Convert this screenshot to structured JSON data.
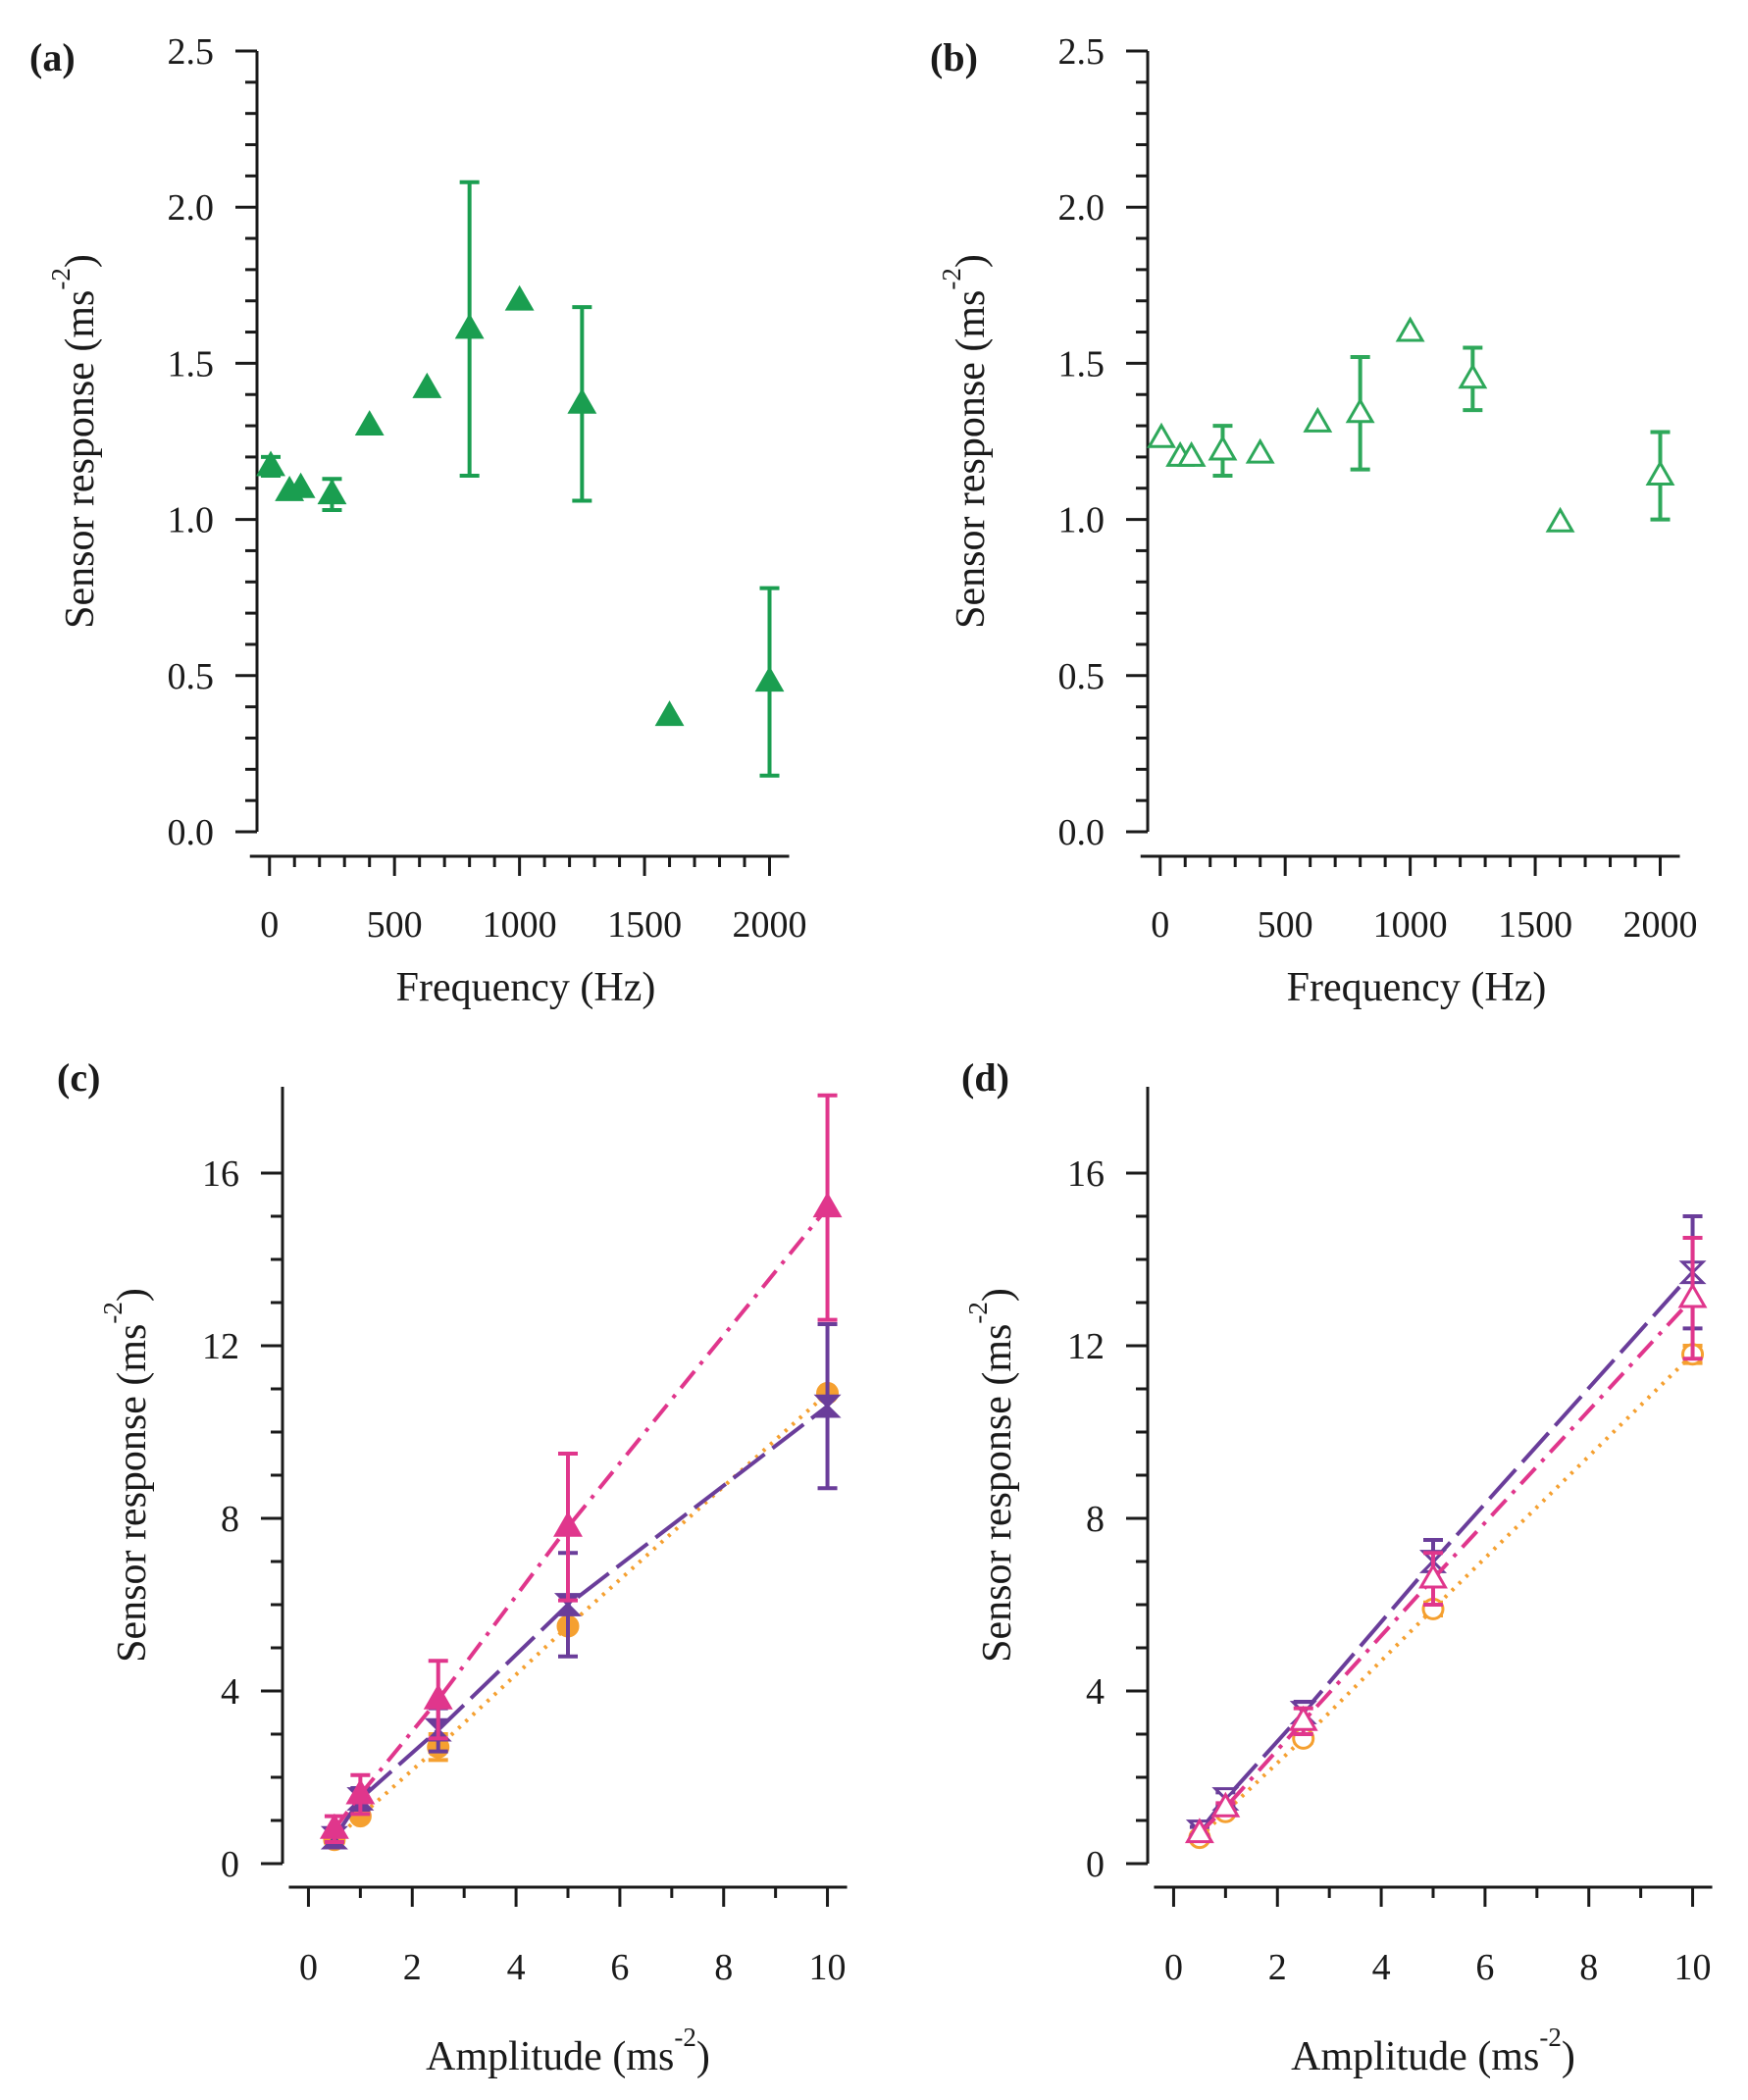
{
  "chart_data": [
    {
      "type": "scatter",
      "panel_label": "(a)",
      "xlabel": "Frequency (Hz)",
      "ylabel": "Sensor response (ms",
      "ylabel_sup": "-2",
      "ylabel_close": ")",
      "xlim": [
        -50,
        2100
      ],
      "ylim": [
        0,
        2.5
      ],
      "xticks": [
        0,
        500,
        1000,
        1500,
        2000
      ],
      "xtick_labels": [
        "0",
        "500",
        "1000",
        "1500",
        "2000"
      ],
      "yticks": [
        0,
        0.5,
        1.0,
        1.5,
        2.0,
        2.5
      ],
      "ytick_labels": [
        "0.0",
        "0.5",
        "1.0",
        "1.5",
        "2.0",
        "2.5"
      ],
      "series": [
        {
          "name": "filled triangles",
          "color": "#1a9e50",
          "marker": "triangle-filled",
          "x": [
            5,
            80,
            125,
            250,
            400,
            630,
            800,
            1000,
            1250,
            1600,
            2000
          ],
          "y": [
            1.17,
            1.09,
            1.1,
            1.08,
            1.3,
            1.42,
            1.61,
            1.7,
            1.37,
            0.37,
            0.48
          ],
          "err": [
            0.03,
            0,
            0,
            0.05,
            0,
            0,
            0.47,
            0,
            0.31,
            0,
            0.3
          ]
        }
      ]
    },
    {
      "type": "scatter",
      "panel_label": "(b)",
      "xlabel": "Frequency (Hz)",
      "ylabel": "Sensor response (ms",
      "ylabel_sup": "-2",
      "ylabel_close": ")",
      "xlim": [
        -50,
        2100
      ],
      "ylim": [
        0,
        2.5
      ],
      "xticks": [
        0,
        500,
        1000,
        1500,
        2000
      ],
      "xtick_labels": [
        "0",
        "500",
        "1000",
        "1500",
        "2000"
      ],
      "yticks": [
        0,
        0.5,
        1.0,
        1.5,
        2.0,
        2.5
      ],
      "ytick_labels": [
        "0.0",
        "0.5",
        "1.0",
        "1.5",
        "2.0",
        "2.5"
      ],
      "series": [
        {
          "name": "open triangles",
          "color": "#2ea85a",
          "marker": "triangle-open",
          "x": [
            5,
            80,
            125,
            250,
            400,
            630,
            800,
            1000,
            1250,
            1600,
            2000
          ],
          "y": [
            1.26,
            1.2,
            1.2,
            1.22,
            1.21,
            1.31,
            1.34,
            1.6,
            1.45,
            0.99,
            1.14
          ],
          "err": [
            0,
            0,
            0,
            0.08,
            0,
            0,
            0.18,
            0,
            0.1,
            0,
            0.14
          ]
        }
      ]
    },
    {
      "type": "line",
      "panel_label": "(c)",
      "xlabel": "Amplitude (ms",
      "xlabel_sup": "-2",
      "xlabel_close": ")",
      "ylabel": "Sensor response (ms",
      "ylabel_sup": "-2",
      "ylabel_close": ")",
      "xlim": [
        -0.5,
        10.5
      ],
      "ylim": [
        0,
        18
      ],
      "xticks": [
        0,
        2,
        4,
        6,
        8,
        10
      ],
      "xtick_labels": [
        "0",
        "2",
        "4",
        "6",
        "8",
        "10"
      ],
      "yticks": [
        0,
        4,
        8,
        12,
        16
      ],
      "ytick_labels": [
        "0",
        "4",
        "8",
        "12",
        "16"
      ],
      "series": [
        {
          "name": "orange dotted",
          "color": "#f5a030",
          "dash": "3,7",
          "marker": "circle-filled",
          "x": [
            0.5,
            1,
            2.5,
            5,
            10
          ],
          "y": [
            0.55,
            1.1,
            2.7,
            5.5,
            10.9
          ],
          "err": [
            0,
            0,
            0.3,
            0,
            0
          ]
        },
        {
          "name": "purple dashed",
          "color": "#6a3d9a",
          "dash": "40,10",
          "marker": "hourglass-filled",
          "x": [
            0.5,
            1,
            2.5,
            5,
            10
          ],
          "y": [
            0.6,
            1.5,
            3.1,
            6.0,
            10.6
          ],
          "err": [
            0.1,
            0.25,
            0.5,
            1.2,
            1.9
          ]
        },
        {
          "name": "magenta dash-dot",
          "color": "#e0368c",
          "dash": "22,9,4,9",
          "marker": "triangle-filled",
          "x": [
            0.5,
            1,
            2.5,
            5,
            10
          ],
          "y": [
            0.8,
            1.6,
            3.8,
            7.8,
            15.2
          ],
          "err": [
            0.3,
            0.45,
            0.9,
            1.7,
            2.6
          ]
        }
      ]
    },
    {
      "type": "line",
      "panel_label": "(d)",
      "xlabel": "Amplitude (ms",
      "xlabel_sup": "-2",
      "xlabel_close": ")",
      "ylabel": "Sensor response (ms",
      "ylabel_sup": "-2",
      "ylabel_close": ")",
      "xlim": [
        -0.5,
        10.5
      ],
      "ylim": [
        0,
        18
      ],
      "xticks": [
        0,
        2,
        4,
        6,
        8,
        10
      ],
      "xtick_labels": [
        "0",
        "2",
        "4",
        "6",
        "8",
        "10"
      ],
      "yticks": [
        0,
        4,
        8,
        12,
        16
      ],
      "ytick_labels": [
        "0",
        "4",
        "8",
        "12",
        "16"
      ],
      "series": [
        {
          "name": "orange dotted",
          "color": "#f5a030",
          "dash": "3,7",
          "marker": "circle-open",
          "x": [
            0.5,
            1,
            2.5,
            5,
            10
          ],
          "y": [
            0.6,
            1.2,
            2.9,
            5.9,
            11.8
          ],
          "err": [
            0,
            0,
            0.1,
            0.15,
            0.2
          ]
        },
        {
          "name": "purple dashed",
          "color": "#6a3d9a",
          "dash": "40,10",
          "marker": "hourglass-open",
          "x": [
            0.5,
            1,
            2.5,
            5,
            10
          ],
          "y": [
            0.75,
            1.5,
            3.5,
            7.0,
            13.7
          ],
          "err": [
            0.1,
            0.15,
            0.25,
            0.5,
            1.3
          ]
        },
        {
          "name": "magenta dash-dot",
          "color": "#e0368c",
          "dash": "22,9,4,9",
          "marker": "triangle-open",
          "x": [
            0.5,
            1,
            2.5,
            5,
            10
          ],
          "y": [
            0.7,
            1.3,
            3.3,
            6.6,
            13.1
          ],
          "err": [
            0,
            0.1,
            0.3,
            0.6,
            1.4
          ]
        }
      ]
    }
  ]
}
